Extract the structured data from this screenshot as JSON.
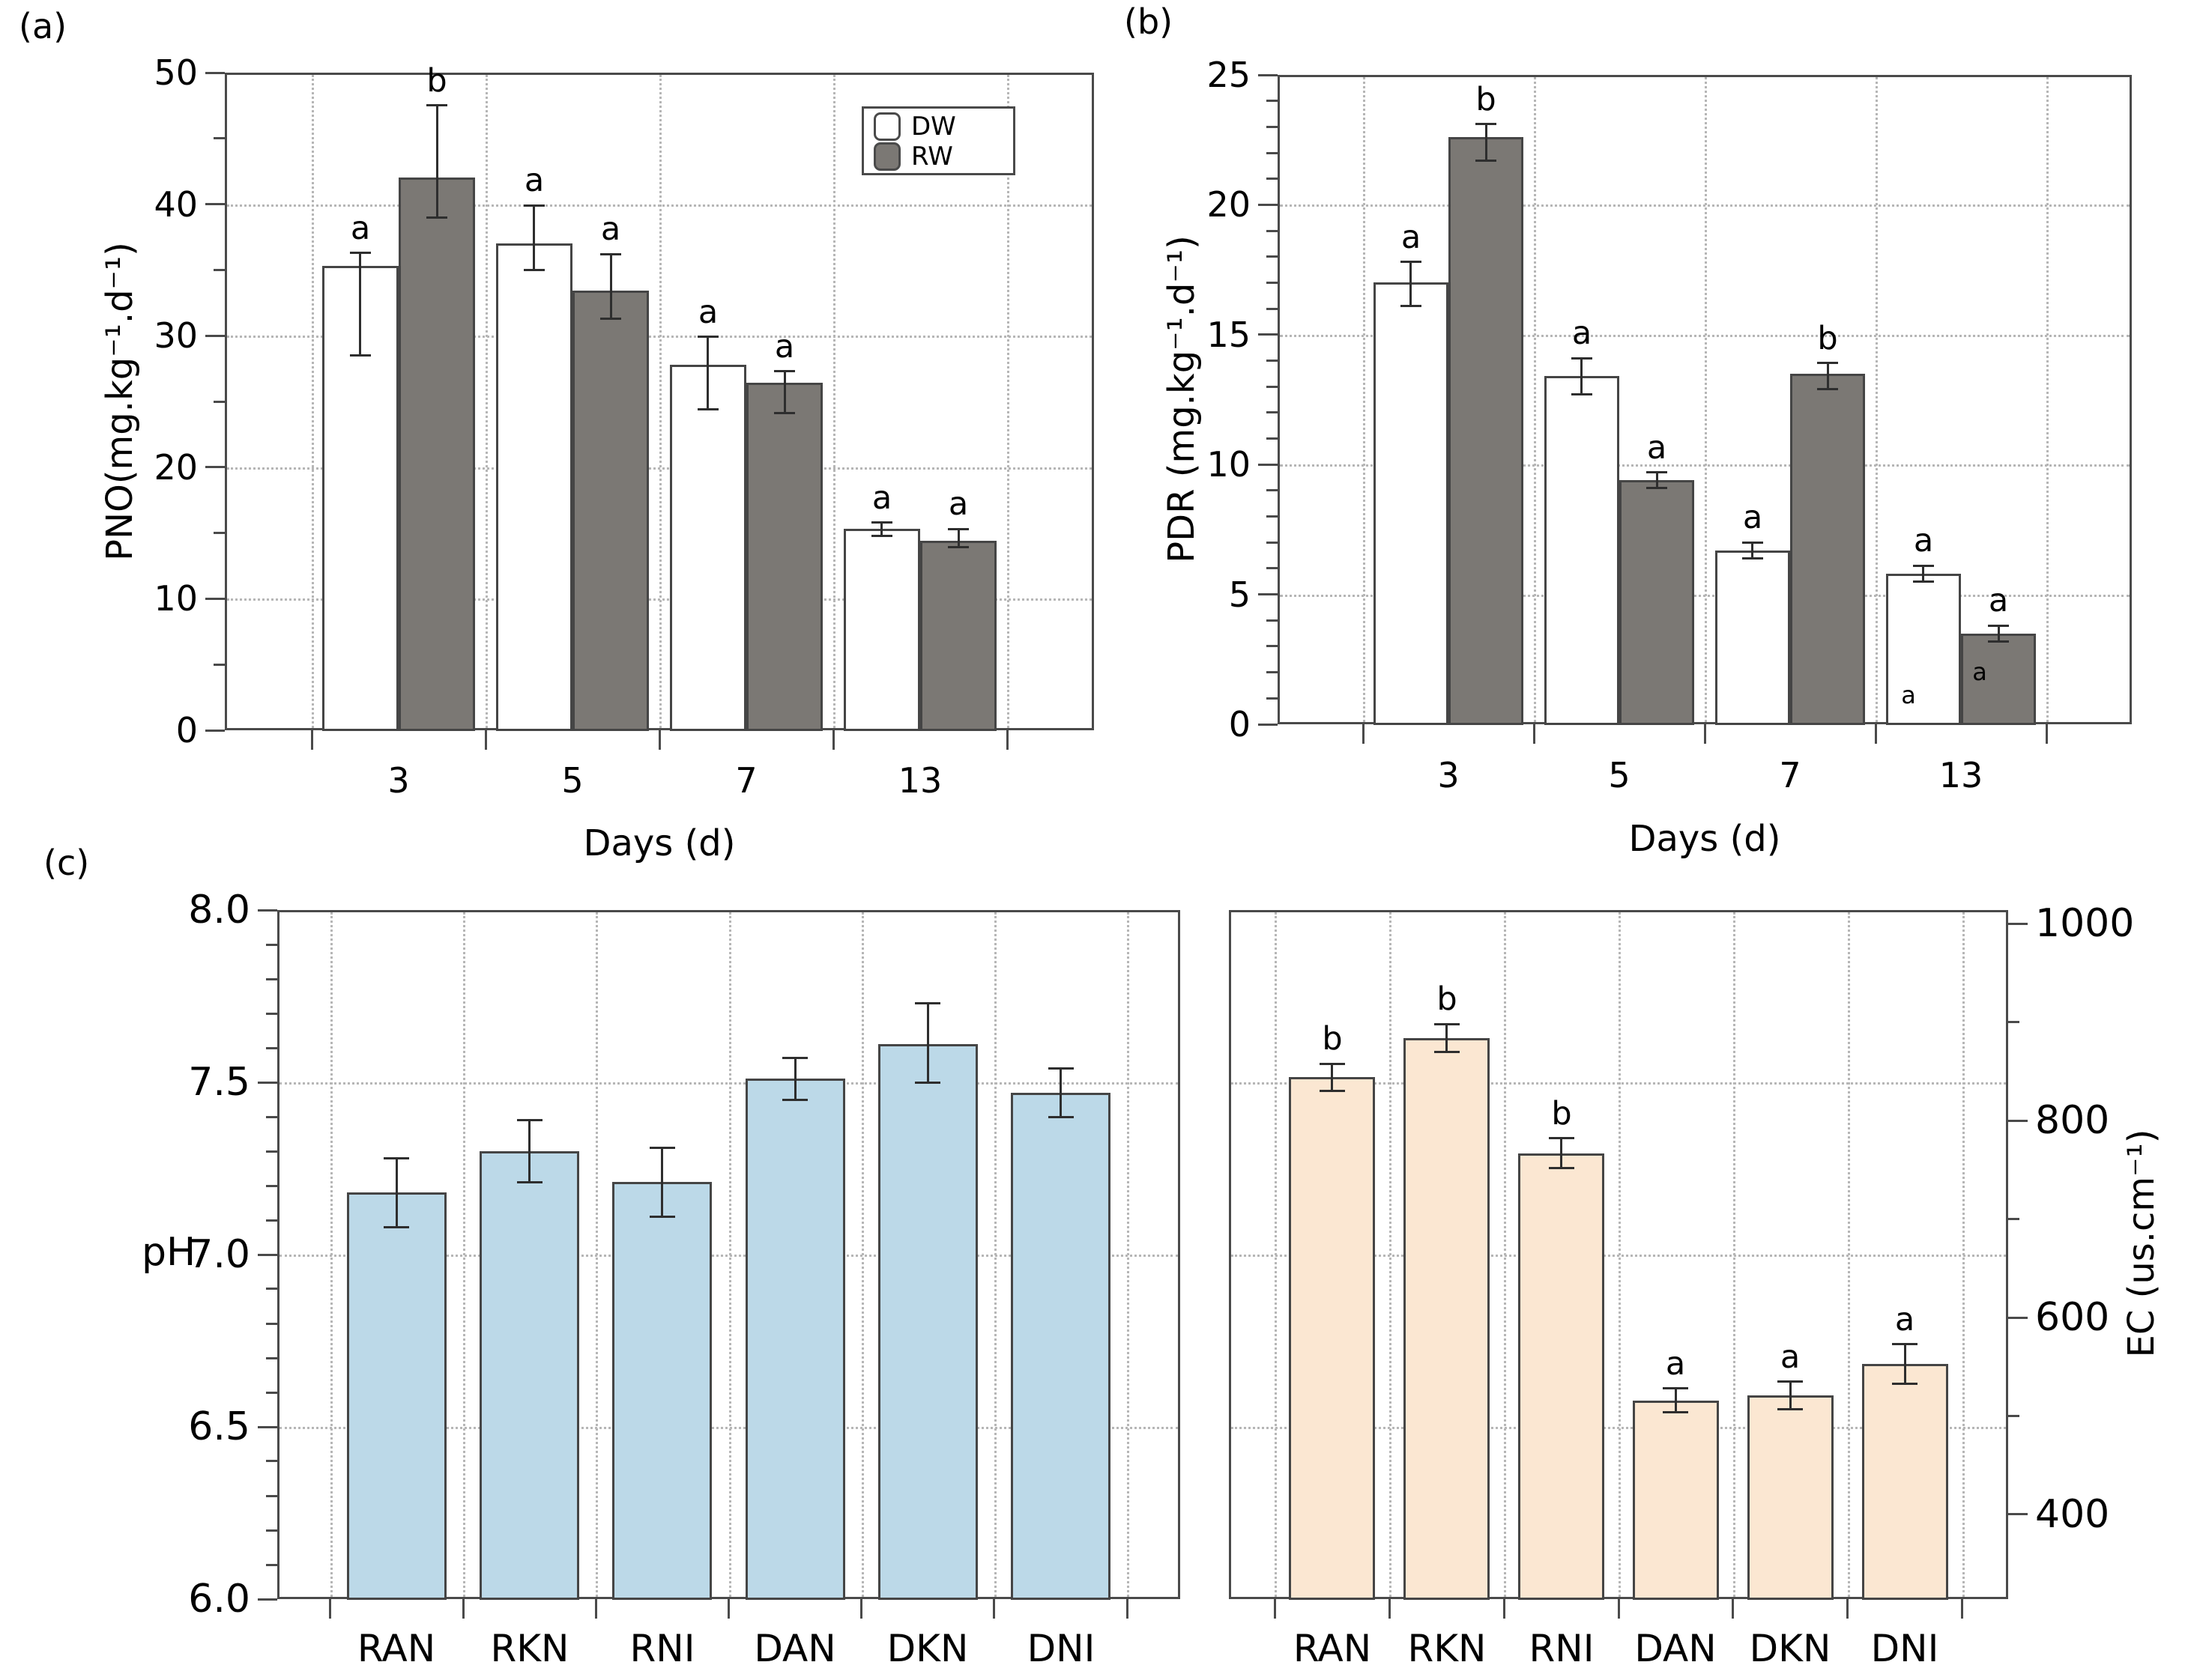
{
  "figure": {
    "panel_tags": {
      "a": "(a)",
      "b": "(b)",
      "c": "(c)"
    }
  },
  "colors": {
    "dw_fill": "#ffffff",
    "rw_fill": "#7b7874",
    "ph_fill": "#bcd9e8",
    "ec_fill": "#fbe7d2",
    "bar_border": "#454545",
    "axis": "#4a4a4a",
    "grid": "#b6b6b6"
  },
  "chart_data": [
    {
      "id": "a",
      "type": "bar",
      "panel": "(a)",
      "xlabel": "Days (d)",
      "ylabel": "PNO(mg.kg⁻¹.d⁻¹)",
      "categories": [
        "3",
        "5",
        "7",
        "13"
      ],
      "ylim": [
        0,
        50
      ],
      "yticks": [
        0,
        10,
        20,
        30,
        40,
        50
      ],
      "ytick_decimals": 0,
      "minor_step": 5,
      "grid_values": [
        10,
        20,
        30,
        40
      ],
      "legend": {
        "position": "top-right",
        "labels": [
          "DW",
          "RW"
        ]
      },
      "series": [
        {
          "name": "DW",
          "fill": "dw_fill",
          "values": [
            35.3,
            37.0,
            27.8,
            15.3
          ],
          "err_up": [
            1.0,
            2.9,
            2.1,
            0.5
          ],
          "err_down": [
            6.8,
            2.0,
            3.4,
            0.5
          ],
          "letters": [
            "a",
            "a",
            "a",
            "a"
          ]
        },
        {
          "name": "RW",
          "fill": "rw_fill",
          "values": [
            42.0,
            33.4,
            26.4,
            14.4
          ],
          "err_up": [
            5.5,
            2.8,
            0.9,
            0.9
          ],
          "err_down": [
            3.0,
            2.1,
            2.3,
            0.5
          ],
          "letters": [
            "b",
            "a",
            "a",
            "a"
          ]
        }
      ]
    },
    {
      "id": "b",
      "type": "bar",
      "panel": "(b)",
      "xlabel": "Days (d)",
      "ylabel": "PDR (mg.kg⁻¹.d⁻¹)",
      "categories": [
        "3",
        "5",
        "7",
        "13"
      ],
      "ylim": [
        0,
        25
      ],
      "yticks": [
        0,
        5,
        10,
        15,
        20,
        25
      ],
      "ytick_decimals": 0,
      "minor_step": 1,
      "grid_values": [
        5,
        10,
        15,
        20
      ],
      "series": [
        {
          "name": "DW",
          "fill": "dw_fill",
          "values": [
            17.0,
            13.4,
            6.7,
            5.8
          ],
          "err_up": [
            0.8,
            0.7,
            0.3,
            0.3
          ],
          "err_down": [
            0.9,
            0.7,
            0.3,
            0.3
          ],
          "letters": [
            "a",
            "a",
            "a",
            "a"
          ]
        },
        {
          "name": "RW",
          "fill": "rw_fill",
          "values": [
            22.6,
            9.4,
            13.5,
            3.5
          ],
          "err_up": [
            0.5,
            0.3,
            0.4,
            0.3
          ],
          "err_down": [
            0.9,
            0.3,
            0.6,
            0.3
          ],
          "letters": [
            "b",
            "a",
            "b",
            "a"
          ]
        }
      ],
      "extra_annotations": [
        {
          "text": "a",
          "group": 3,
          "series": 0,
          "rel_x": 0.3,
          "y_value": 0.7
        },
        {
          "text": "a",
          "group": 3,
          "series": 1,
          "rel_x": 0.25,
          "y_value": 1.6
        }
      ]
    },
    {
      "id": "c_ph",
      "type": "bar",
      "panel": "(c)",
      "xlabel": "",
      "ylabel": "pH",
      "ylabel_orientation": "horizontal",
      "categories": [
        "RAN",
        "RKN",
        "RNI",
        "DAN",
        "DKN",
        "DNI"
      ],
      "ylim": [
        6.0,
        8.0
      ],
      "yticks": [
        6.0,
        6.5,
        7.0,
        7.5,
        8.0
      ],
      "ytick_decimals": 1,
      "minor_step": 0.1,
      "grid_values": [
        6.5,
        7.0,
        7.5
      ],
      "series": [
        {
          "name": "pH",
          "fill": "ph_fill",
          "values": [
            7.18,
            7.3,
            7.21,
            7.51,
            7.61,
            7.47
          ],
          "err_up": [
            0.1,
            0.09,
            0.1,
            0.06,
            0.12,
            0.07
          ],
          "err_down": [
            0.1,
            0.09,
            0.1,
            0.06,
            0.11,
            0.07
          ],
          "letters": [
            "",
            "",
            "",
            "",
            "",
            ""
          ]
        }
      ]
    },
    {
      "id": "c_ec",
      "type": "bar",
      "panel": "(c)",
      "xlabel": "",
      "ylabel": "EC (us.cm⁻¹)",
      "yaxis_side": "right",
      "categories": [
        "RAN",
        "RKN",
        "RNI",
        "DAN",
        "DKN",
        "DNI"
      ],
      "ylim": [
        314,
        1014
      ],
      "yticks": [
        400,
        600,
        800,
        1000
      ],
      "ytick_decimals": 0,
      "minor_step": 100,
      "grid_values": [
        489,
        664,
        839
      ],
      "series": [
        {
          "name": "EC",
          "fill": "ec_fill",
          "values": [
            844,
            884,
            767,
            516,
            521,
            553
          ],
          "err_up": [
            14,
            14,
            15,
            12,
            14,
            20
          ],
          "err_down": [
            14,
            14,
            15,
            12,
            14,
            20
          ],
          "letters": [
            "b",
            "b",
            "b",
            "a",
            "a",
            "a"
          ]
        }
      ]
    }
  ]
}
